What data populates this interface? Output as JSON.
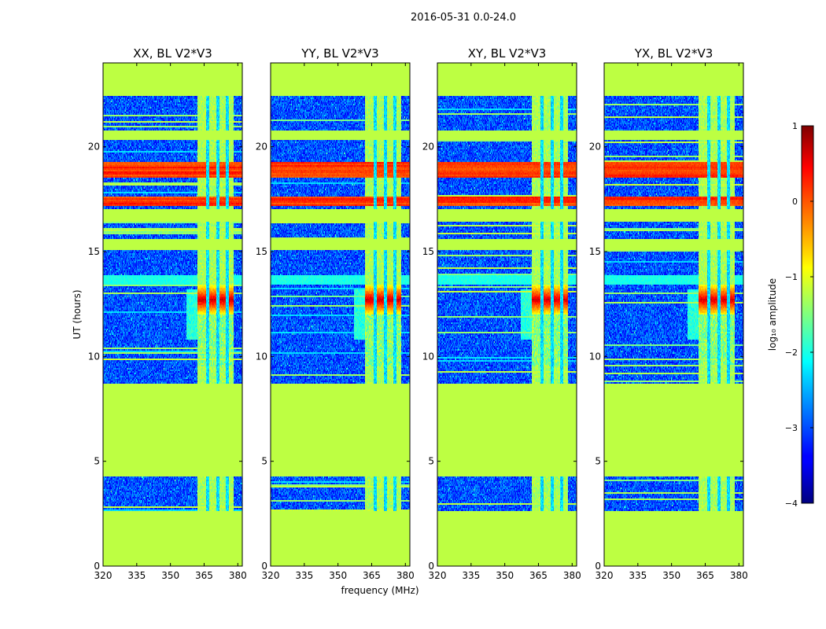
{
  "figure": {
    "suptitle": "2016-05-31 0.0-24.0"
  },
  "chart_data": {
    "type": "heatmap",
    "colormap": "jet",
    "title": "2016-05-31 0.0-24.0",
    "xlabel": "frequency (MHz)",
    "ylabel": "UT (hours)",
    "xlim": [
      320,
      382
    ],
    "ylim": [
      0,
      24
    ],
    "xticks": [
      "320",
      "335",
      "350",
      "365",
      "380"
    ],
    "yticks": [
      "0",
      "5",
      "10",
      "15",
      "20"
    ],
    "colorbar": {
      "label": "log₁₀ amplitude",
      "range": [
        -4,
        1
      ],
      "ticks": [
        "1",
        "0",
        "−1",
        "−2",
        "−3",
        "−4"
      ]
    },
    "panels": [
      {
        "title": "XX, BL V2*V3",
        "polarization": "XX",
        "band_hot_level": 1.0
      },
      {
        "title": "YY, BL V2*V3",
        "polarization": "YY",
        "band_hot_level": 1.0
      },
      {
        "title": "XY, BL V2*V3",
        "polarization": "XY",
        "band_hot_level": 0.95
      },
      {
        "title": "YX, BL V2*V3",
        "polarization": "YX",
        "band_hot_level": 0.9
      }
    ],
    "data_blocks_ut": [
      [
        2.6,
        4.3
      ],
      [
        8.7,
        15.1
      ],
      [
        15.6,
        16.4
      ],
      [
        17.0,
        20.3
      ],
      [
        20.8,
        22.4
      ]
    ],
    "flagged_ut": [
      [
        0,
        2.6
      ],
      [
        4.3,
        8.7
      ],
      [
        15.1,
        15.6
      ],
      [
        16.4,
        17.0
      ],
      [
        20.3,
        20.8
      ],
      [
        22.4,
        24.0
      ]
    ],
    "flag_value_log10": -1.2,
    "background_value_log10": -3.0,
    "strong_rfi_ut": [
      [
        17.2,
        17.6
      ],
      [
        18.5,
        19.3
      ]
    ],
    "signal_band_mhz": [
      362,
      378
    ],
    "peak_ut": [
      12.0,
      13.4
    ]
  }
}
